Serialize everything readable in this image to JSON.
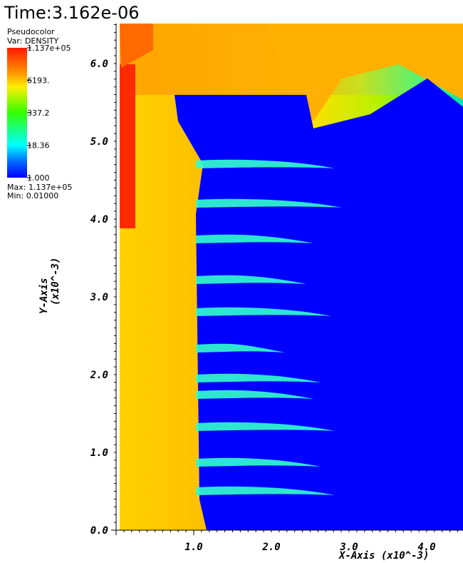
{
  "header": {
    "time": "Time:3.162e-06"
  },
  "legend": {
    "title": "Pseudocolor",
    "variable": "Var: DENSITY",
    "labels": [
      "1.137e+05",
      "6193.",
      "337.2",
      "18.36",
      "1.000"
    ],
    "max": "Max:  1.137e+05",
    "min": "Min:  0.01000"
  },
  "x_axis": {
    "title": "X-Axis  (x10^-3)",
    "ticks": [
      "1.0",
      "2.0",
      "3.0",
      "4.0"
    ]
  },
  "y_axis": {
    "title": "Y-Axis",
    "subtitle": "(x10^-3)",
    "ticks": [
      "0.0",
      "1.0",
      "2.0",
      "3.0",
      "4.0",
      "5.0",
      "6.0"
    ]
  }
}
